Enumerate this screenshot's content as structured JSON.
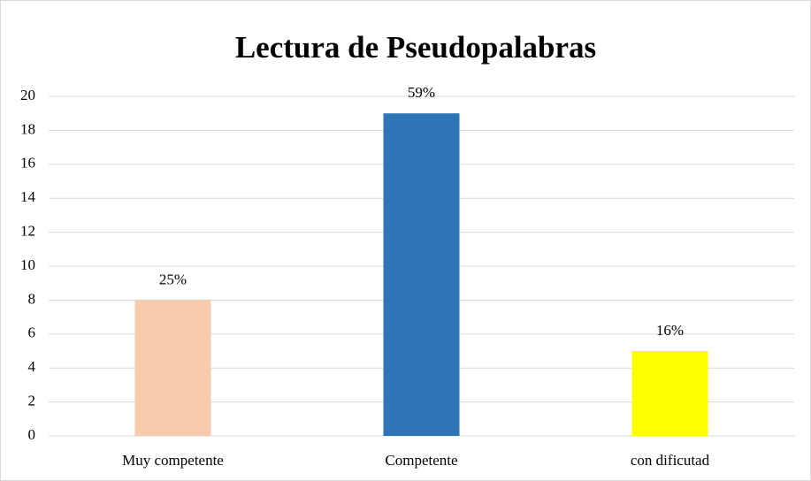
{
  "chart_data": {
    "type": "bar",
    "title": "Lectura de Pseudopalabras",
    "categories": [
      "Muy competente",
      "Competente",
      "con dificutad"
    ],
    "values": [
      8,
      19,
      5
    ],
    "data_labels": [
      "25%",
      "59%",
      "16%"
    ],
    "colors": [
      "#f8cbad",
      "#2e75b6",
      "#ffff00"
    ],
    "ylim": [
      0,
      20
    ],
    "yticks": [
      0,
      2,
      4,
      6,
      8,
      10,
      12,
      14,
      16,
      18,
      20
    ],
    "grid": true
  }
}
